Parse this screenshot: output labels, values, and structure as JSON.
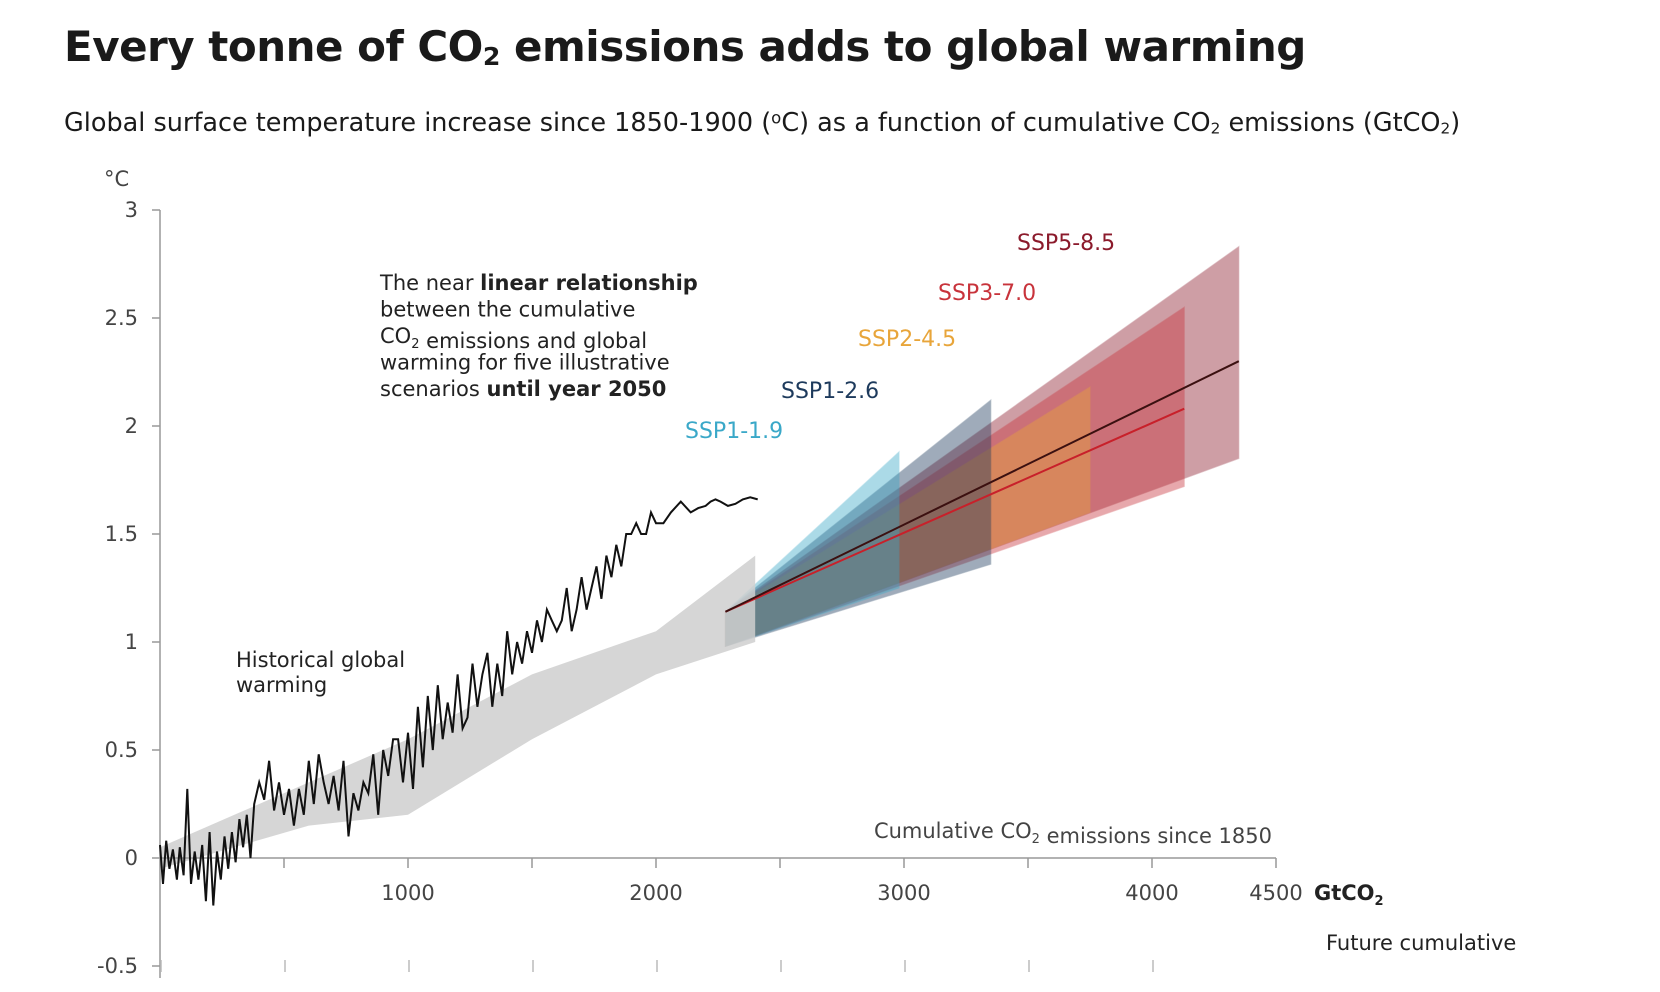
{
  "title_parts": {
    "pre": "Every tonne of CO",
    "sub": "2",
    "post": " emissions adds to global warming"
  },
  "subtitle_parts": {
    "a": "Global surface temperature increase since 1850-1900 (",
    "deg": "o",
    "b": "C) as a function of cumulative CO",
    "sub1": "2",
    "c": " emissions (GtCO",
    "sub2": "2",
    "d": ")"
  },
  "colors": {
    "ssp1_19": "#3aa8c8",
    "ssp1_26": "#1d3a5c",
    "ssp2_45": "#e8a53a",
    "ssp3_70": "#c8333b",
    "ssp5_85": "#8b1a2b",
    "historical_band": "#cfcfcf",
    "axis": "#999999"
  },
  "annotations": {
    "relationship": [
      [
        {
          "t": "The near ",
          "b": false
        },
        {
          "t": "linear relationship",
          "b": true
        }
      ],
      [
        {
          "t": "between the cumulative",
          "b": false
        }
      ],
      [
        {
          "t": "CO",
          "b": false
        },
        {
          "t": "2",
          "b": false,
          "sub": true
        },
        {
          "t": " emissions and global",
          "b": false
        }
      ],
      [
        {
          "t": "warming for five illustrative",
          "b": false
        }
      ],
      [
        {
          "t": "scenarios ",
          "b": false
        },
        {
          "t": "until year 2050",
          "b": true
        }
      ]
    ],
    "historical": [
      "Historical global",
      "warming"
    ],
    "x_caption_parts": {
      "pre": "Cumulative CO",
      "sub": "2",
      "post": " emissions since 1850"
    },
    "x_unit_parts": {
      "pre": "GtCO",
      "sub": "2"
    },
    "y_unit": "°C",
    "future": "Future cumulative"
  },
  "chart_data": {
    "type": "line",
    "title": "Every tonne of CO2 emissions adds to global warming",
    "subtitle": "Global surface temperature increase since 1850-1900 (oC) as a function of cumulative CO2 emissions (GtCO2)",
    "xlabel": "Cumulative CO2 emissions since 1850 (GtCO2)",
    "ylabel": "°C",
    "xlim": [
      0,
      4500
    ],
    "ylim": [
      -0.5,
      3
    ],
    "x_ticks": [
      1000,
      2000,
      3000,
      4000,
      4500
    ],
    "y_ticks": [
      -0.5,
      0,
      0.5,
      1,
      1.5,
      2,
      2.5,
      3
    ],
    "y_tick_labels": [
      "-0.5",
      "0",
      "0.5",
      "1",
      "1.5",
      "2",
      "2.5",
      "3"
    ],
    "historical_band": {
      "x": [
        0,
        300,
        600,
        1000,
        1500,
        2000,
        2400
      ],
      "upper": [
        0.05,
        0.2,
        0.35,
        0.55,
        0.85,
        1.05,
        1.4
      ],
      "lower": [
        -0.05,
        0.05,
        0.15,
        0.2,
        0.55,
        0.85,
        1.0
      ]
    },
    "historical": {
      "name": "Historical global warming",
      "x": [
        0,
        12,
        25,
        38,
        52,
        68,
        80,
        95,
        110,
        125,
        140,
        155,
        170,
        185,
        200,
        215,
        230,
        245,
        260,
        275,
        290,
        305,
        320,
        335,
        350,
        365,
        380,
        400,
        420,
        440,
        460,
        480,
        500,
        520,
        540,
        560,
        580,
        600,
        620,
        640,
        660,
        680,
        700,
        720,
        740,
        760,
        780,
        800,
        820,
        840,
        860,
        880,
        900,
        920,
        940,
        960,
        980,
        1000,
        1020,
        1040,
        1060,
        1080,
        1100,
        1120,
        1140,
        1160,
        1180,
        1200,
        1220,
        1240,
        1260,
        1280,
        1300,
        1320,
        1340,
        1360,
        1380,
        1400,
        1420,
        1440,
        1460,
        1480,
        1500,
        1520,
        1540,
        1560,
        1580,
        1600,
        1620,
        1640,
        1660,
        1680,
        1700,
        1720,
        1740,
        1760,
        1780,
        1800,
        1820,
        1840,
        1860,
        1880,
        1900,
        1920,
        1940,
        1960,
        1980,
        2000,
        2030,
        2060,
        2100,
        2140,
        2170,
        2200,
        2220,
        2240,
        2260,
        2290,
        2320,
        2350,
        2380,
        2410
      ],
      "y": [
        0.06,
        -0.12,
        0.08,
        -0.05,
        0.04,
        -0.1,
        0.05,
        -0.08,
        0.32,
        -0.12,
        0.03,
        -0.1,
        0.06,
        -0.2,
        0.12,
        -0.22,
        0.03,
        -0.1,
        0.1,
        -0.05,
        0.12,
        -0.02,
        0.18,
        0.05,
        0.2,
        0.0,
        0.25,
        0.35,
        0.27,
        0.45,
        0.22,
        0.35,
        0.2,
        0.32,
        0.15,
        0.32,
        0.2,
        0.45,
        0.25,
        0.48,
        0.35,
        0.25,
        0.38,
        0.22,
        0.45,
        0.1,
        0.3,
        0.22,
        0.35,
        0.3,
        0.48,
        0.2,
        0.5,
        0.38,
        0.55,
        0.55,
        0.35,
        0.58,
        0.32,
        0.7,
        0.42,
        0.75,
        0.5,
        0.8,
        0.55,
        0.72,
        0.58,
        0.85,
        0.6,
        0.65,
        0.9,
        0.7,
        0.85,
        0.95,
        0.7,
        0.9,
        0.75,
        1.05,
        0.85,
        1.0,
        0.9,
        1.05,
        0.95,
        1.1,
        1.0,
        1.15,
        1.1,
        1.05,
        1.1,
        1.25,
        1.05,
        1.15,
        1.3,
        1.15,
        1.25,
        1.35,
        1.2,
        1.4,
        1.3,
        1.45,
        1.35,
        1.5,
        1.5,
        1.55,
        1.5,
        1.5,
        1.6,
        1.55,
        1.55,
        1.6,
        1.65,
        1.6,
        1.62,
        1.63,
        1.65,
        1.66,
        1.65,
        1.63,
        1.64,
        1.66,
        1.67,
        1.66
      ]
    },
    "series": [
      {
        "name": "SSP1-1.9",
        "x": [
          2280,
          2980
        ],
        "central": [
          1.14,
          1.52
        ],
        "upper_end": 1.88,
        "lower_end": 1.25,
        "start_upper": 1.14,
        "start_lower": 0.98,
        "color": "#3aa8c8"
      },
      {
        "name": "SSP1-2.6",
        "x": [
          2280,
          3350
        ],
        "central": [
          1.14,
          1.7
        ],
        "upper_end": 2.12,
        "lower_end": 1.36,
        "start_upper": 1.14,
        "start_lower": 0.98,
        "color": "#1d3a5c"
      },
      {
        "name": "SSP2-4.5",
        "x": [
          2280,
          3750
        ],
        "central": [
          1.14,
          1.9
        ],
        "upper_end": 2.18,
        "lower_end": 1.6,
        "start_upper": 1.14,
        "start_lower": 0.98,
        "color": "#e8a53a"
      },
      {
        "name": "SSP3-7.0",
        "x": [
          2280,
          4130
        ],
        "central": [
          1.14,
          2.08
        ],
        "upper_end": 2.55,
        "lower_end": 1.72,
        "start_upper": 1.14,
        "start_lower": 0.98,
        "color": "#c8333b"
      },
      {
        "name": "SSP5-8.5",
        "x": [
          2280,
          4350
        ],
        "central": [
          1.14,
          2.3
        ],
        "upper_end": 2.83,
        "lower_end": 1.85,
        "start_upper": 1.14,
        "start_lower": 0.98,
        "color": "#8b1a2b"
      }
    ]
  }
}
